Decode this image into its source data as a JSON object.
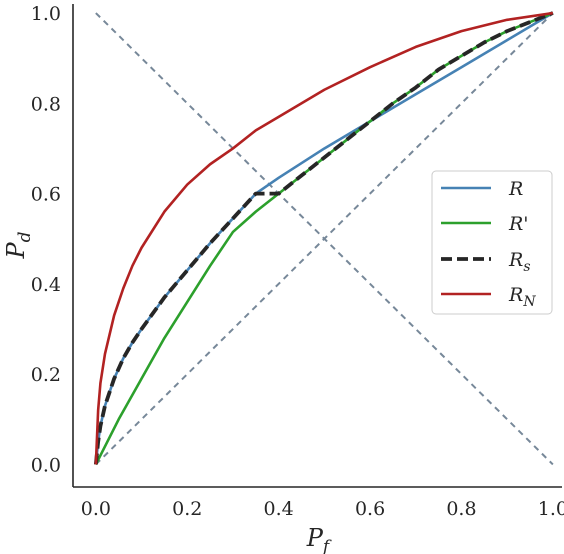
{
  "chart_data": {
    "type": "line",
    "title": "",
    "xlabel": "P_f",
    "ylabel": "P_d",
    "xlim": [
      -0.05,
      1.02
    ],
    "ylim": [
      -0.05,
      1.02
    ],
    "x_ticks": [
      "0.0",
      "0.2",
      "0.4",
      "0.6",
      "0.8",
      "1.0"
    ],
    "y_ticks": [
      "0.0",
      "0.2",
      "0.4",
      "0.6",
      "0.8",
      "1.0"
    ],
    "grid": false,
    "legend_position": "center-right",
    "reference_lines": [
      {
        "style": "dashed",
        "color": "#778899",
        "x": [
          0.0,
          1.0
        ],
        "y": [
          0.0,
          1.0
        ]
      },
      {
        "style": "dashed",
        "color": "#778899",
        "x": [
          0.0,
          1.0
        ],
        "y": [
          1.0,
          0.0
        ]
      }
    ],
    "series": [
      {
        "name": "R",
        "color": "#4682b4",
        "style": "solid",
        "x": [
          0.0,
          0.005,
          0.01,
          0.02,
          0.04,
          0.06,
          0.08,
          0.1,
          0.15,
          0.2,
          0.25,
          0.3,
          0.35,
          0.4,
          0.5,
          0.6,
          0.7,
          0.8,
          0.9,
          1.0
        ],
        "y": [
          0.0,
          0.05,
          0.085,
          0.13,
          0.19,
          0.235,
          0.27,
          0.3,
          0.37,
          0.43,
          0.49,
          0.545,
          0.6,
          0.635,
          0.7,
          0.76,
          0.82,
          0.88,
          0.94,
          1.0
        ]
      },
      {
        "name": "R'",
        "color": "#2ca02c",
        "style": "solid",
        "x": [
          0.0,
          0.05,
          0.1,
          0.15,
          0.2,
          0.25,
          0.3,
          0.35,
          0.4,
          0.45,
          0.5,
          0.55,
          0.6,
          0.65,
          0.7,
          0.75,
          0.8,
          0.85,
          0.9,
          0.95,
          1.0
        ],
        "y": [
          0.0,
          0.1,
          0.19,
          0.28,
          0.36,
          0.44,
          0.515,
          0.56,
          0.6,
          0.64,
          0.68,
          0.72,
          0.76,
          0.8,
          0.835,
          0.875,
          0.905,
          0.935,
          0.96,
          0.98,
          1.0
        ]
      },
      {
        "name": "R_s",
        "color": "#262626",
        "style": "dashed",
        "x": [
          0.0,
          0.005,
          0.01,
          0.02,
          0.04,
          0.06,
          0.08,
          0.1,
          0.15,
          0.2,
          0.25,
          0.3,
          0.35,
          0.4,
          0.45,
          0.5,
          0.55,
          0.6,
          0.65,
          0.7,
          0.75,
          0.8,
          0.85,
          0.9,
          0.95,
          1.0
        ],
        "y": [
          0.0,
          0.05,
          0.085,
          0.13,
          0.19,
          0.235,
          0.27,
          0.3,
          0.37,
          0.43,
          0.49,
          0.545,
          0.6,
          0.6,
          0.64,
          0.68,
          0.72,
          0.76,
          0.8,
          0.835,
          0.875,
          0.905,
          0.935,
          0.96,
          0.98,
          1.0
        ]
      },
      {
        "name": "R_N",
        "color": "#b22222",
        "style": "solid",
        "x": [
          0.0,
          0.005,
          0.01,
          0.02,
          0.04,
          0.06,
          0.08,
          0.1,
          0.15,
          0.2,
          0.25,
          0.3,
          0.35,
          0.4,
          0.5,
          0.6,
          0.7,
          0.8,
          0.9,
          1.0
        ],
        "y": [
          0.0,
          0.12,
          0.18,
          0.245,
          0.33,
          0.39,
          0.44,
          0.48,
          0.56,
          0.62,
          0.665,
          0.7,
          0.74,
          0.77,
          0.83,
          0.88,
          0.925,
          0.96,
          0.985,
          1.0
        ]
      }
    ]
  }
}
